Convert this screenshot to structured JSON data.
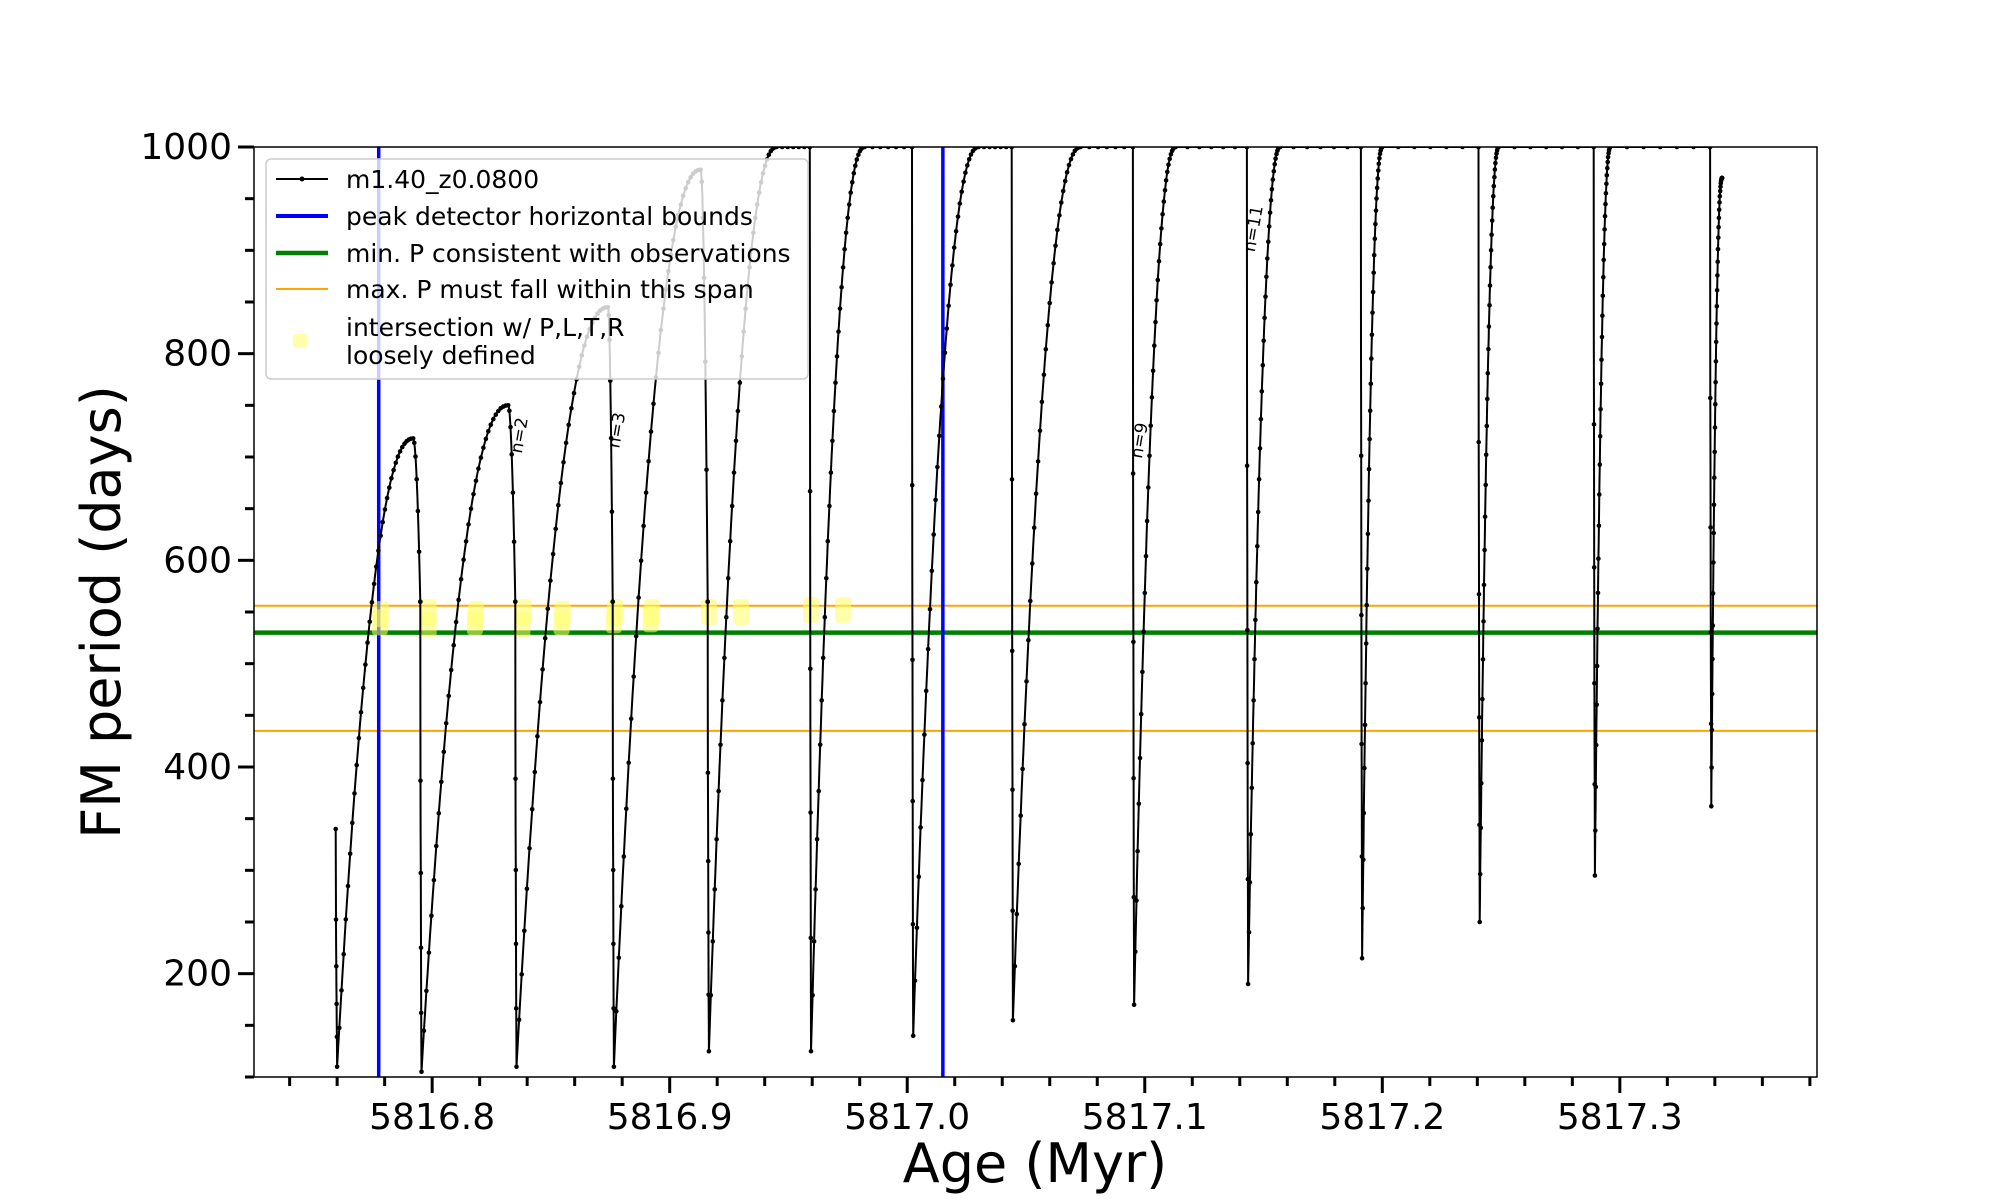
{
  "chart_data": {
    "type": "line",
    "xlabel": "Age (Myr)",
    "ylabel": "FM period (days)",
    "xlim": [
      5816.725,
      5817.383
    ],
    "ylim": [
      100,
      1000
    ],
    "xticks": [
      5816.8,
      5816.9,
      5817.0,
      5817.1,
      5817.2,
      5817.3
    ],
    "xtick_labels": [
      "5816.8",
      "5816.9",
      "5817.0",
      "5817.1",
      "5817.2",
      "5817.3"
    ],
    "yticks": [
      200,
      400,
      600,
      800,
      1000
    ],
    "ytick_labels": [
      "200",
      "400",
      "600",
      "800",
      "1000"
    ],
    "grid": false,
    "legend_position": "top-left",
    "colors": {
      "track": "#000000",
      "bounds": "#0000ff",
      "min_p": "#008000",
      "max_p_span": "#ffa500",
      "intersection": "#ffff66"
    },
    "series": [
      {
        "name": "m1.40_z0.0800",
        "kind": "track",
        "cycles": [
          {
            "t_start": 5816.7594,
            "p_start": 340,
            "t_min": 5816.76,
            "p_min": 110,
            "t_peak": 5816.792,
            "p_peak": 718,
            "t_end": 5816.795,
            "p_end": 560
          },
          {
            "t_start": 5816.795,
            "p_start": 560,
            "t_min": 5816.7955,
            "p_min": 105,
            "t_peak": 5816.832,
            "p_peak": 750,
            "t_end": 5816.835,
            "p_end": 560
          },
          {
            "t_start": 5816.835,
            "p_start": 560,
            "t_min": 5816.8355,
            "p_min": 110,
            "t_peak": 5816.874,
            "p_peak": 845,
            "t_end": 5816.876,
            "p_end": 560
          },
          {
            "t_start": 5816.876,
            "p_start": 560,
            "t_min": 5816.8765,
            "p_min": 110,
            "t_peak": 5816.913,
            "p_peak": 978,
            "t_end": 5816.916,
            "p_end": 560
          },
          {
            "t_start": 5816.916,
            "p_start": 560,
            "t_min": 5816.9165,
            "p_min": 125,
            "t_peak": 5816.945,
            "p_peak": 1000,
            "t_end": 5816.959,
            "p_end": 1000
          },
          {
            "t_start": 5816.959,
            "p_start": 1000,
            "t_min": 5816.9595,
            "p_min": 125,
            "t_peak": 5816.982,
            "p_peak": 1000,
            "t_end": 5817.002,
            "p_end": 1000
          },
          {
            "t_start": 5817.002,
            "p_start": 1000,
            "t_min": 5817.0025,
            "p_min": 140,
            "t_peak": 5817.03,
            "p_peak": 1000,
            "t_end": 5817.044,
            "p_end": 1000
          },
          {
            "t_start": 5817.044,
            "p_start": 1000,
            "t_min": 5817.0445,
            "p_min": 155,
            "t_peak": 5817.073,
            "p_peak": 1000,
            "t_end": 5817.095,
            "p_end": 1000
          },
          {
            "t_start": 5817.095,
            "p_start": 1000,
            "t_min": 5817.0955,
            "p_min": 170,
            "t_peak": 5817.113,
            "p_peak": 1000,
            "t_end": 5817.143,
            "p_end": 1000
          },
          {
            "t_start": 5817.143,
            "p_start": 1000,
            "t_min": 5817.1435,
            "p_min": 190,
            "t_peak": 5817.157,
            "p_peak": 1000,
            "t_end": 5817.191,
            "p_end": 1000
          },
          {
            "t_start": 5817.191,
            "p_start": 1000,
            "t_min": 5817.1915,
            "p_min": 215,
            "t_peak": 5817.2,
            "p_peak": 1000,
            "t_end": 5817.2405,
            "p_end": 1000
          },
          {
            "t_start": 5817.2405,
            "p_start": 1000,
            "t_min": 5817.241,
            "p_min": 250,
            "t_peak": 5817.249,
            "p_peak": 1000,
            "t_end": 5817.289,
            "p_end": 1000
          },
          {
            "t_start": 5817.289,
            "p_start": 1000,
            "t_min": 5817.2895,
            "p_min": 295,
            "t_peak": 5817.296,
            "p_peak": 1000,
            "t_end": 5817.338,
            "p_end": 1000
          },
          {
            "t_start": 5817.338,
            "p_start": 1000,
            "t_min": 5817.3385,
            "p_min": 362,
            "t_peak": 5817.343,
            "p_peak": 970,
            "t_end": 5817.343,
            "p_end": 970
          }
        ]
      },
      {
        "name": "peak detector horizontal bounds",
        "kind": "vline",
        "x": [
          5816.7775,
          5817.015
        ]
      },
      {
        "name": "min. P consistent with observations",
        "kind": "hline",
        "y": [
          530
        ]
      },
      {
        "name": "max. P must fall within this span",
        "kind": "hline",
        "y": [
          435,
          556
        ]
      },
      {
        "name": "intersection w/ P,L,T,R\nloosely defined",
        "kind": "scatter",
        "points": [
          {
            "x": 5816.778,
            "y": 540
          },
          {
            "x": 5816.7785,
            "y": 548
          },
          {
            "x": 5816.7985,
            "y": 538
          },
          {
            "x": 5816.7985,
            "y": 550
          },
          {
            "x": 5816.818,
            "y": 540
          },
          {
            "x": 5816.8185,
            "y": 548
          },
          {
            "x": 5816.838,
            "y": 538
          },
          {
            "x": 5816.8385,
            "y": 550
          },
          {
            "x": 5816.8545,
            "y": 540
          },
          {
            "x": 5816.855,
            "y": 548
          },
          {
            "x": 5816.8765,
            "y": 542
          },
          {
            "x": 5816.877,
            "y": 550
          },
          {
            "x": 5816.892,
            "y": 543
          },
          {
            "x": 5816.8925,
            "y": 550
          },
          {
            "x": 5816.9165,
            "y": 550
          },
          {
            "x": 5816.93,
            "y": 550
          },
          {
            "x": 5816.9595,
            "y": 552
          },
          {
            "x": 5816.973,
            "y": 552
          }
        ]
      }
    ],
    "annotations": [
      {
        "text": "n=2",
        "x": 5816.839,
        "y": 720
      },
      {
        "text": "n=3",
        "x": 5816.88,
        "y": 725
      },
      {
        "text": "n=9",
        "x": 5817.1,
        "y": 715
      },
      {
        "text": "n=11",
        "x": 5817.148,
        "y": 920
      }
    ]
  }
}
